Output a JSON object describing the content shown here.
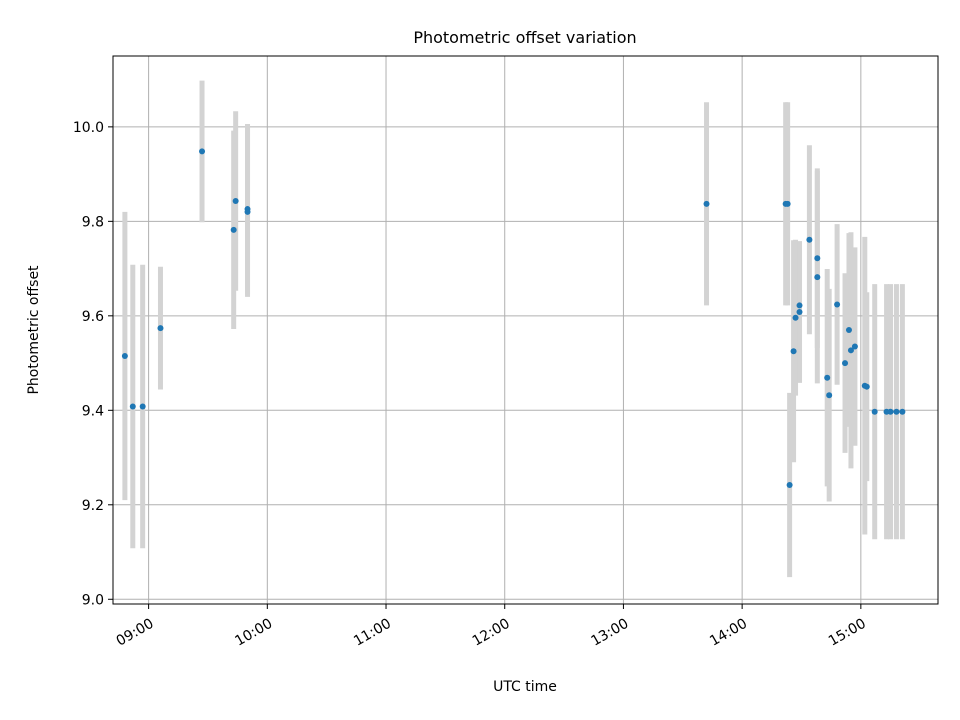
{
  "chart_data": {
    "type": "scatter",
    "title": "Photometric offset variation",
    "xlabel": "UTC time",
    "ylabel": "Photometric offset",
    "xlim": [
      "08:42",
      "15:39"
    ],
    "ylim": [
      8.99,
      10.15
    ],
    "grid": true,
    "x_tick_labels": [
      "09:00",
      "10:00",
      "11:00",
      "12:00",
      "13:00",
      "14:00",
      "15:00"
    ],
    "y_tick_labels": [
      "9.0",
      "9.2",
      "9.4",
      "9.6",
      "9.8",
      "10.0"
    ],
    "colors": {
      "point": "#1f77b4",
      "errorbar": "#d3d3d3",
      "grid": "#b0b0b0"
    },
    "points": [
      {
        "x": "08:48",
        "y": 9.515,
        "err": 0.305
      },
      {
        "x": "08:52",
        "y": 9.408,
        "err": 0.3
      },
      {
        "x": "08:57",
        "y": 9.408,
        "err": 0.3
      },
      {
        "x": "09:06",
        "y": 9.574,
        "err": 0.13
      },
      {
        "x": "09:27",
        "y": 9.948,
        "err": 0.15
      },
      {
        "x": "09:43",
        "y": 9.782,
        "err": 0.21
      },
      {
        "x": "09:44",
        "y": 9.843,
        "err": 0.19
      },
      {
        "x": "09:50",
        "y": 9.826,
        "err": 0.18
      },
      {
        "x": "09:50",
        "y": 9.82,
        "err": 0.18
      },
      {
        "x": "13:42",
        "y": 9.837,
        "err": 0.215
      },
      {
        "x": "14:22",
        "y": 9.837,
        "err": 0.215
      },
      {
        "x": "14:23",
        "y": 9.837,
        "err": 0.215
      },
      {
        "x": "14:24",
        "y": 9.242,
        "err": 0.195
      },
      {
        "x": "14:26",
        "y": 9.525,
        "err": 0.235
      },
      {
        "x": "14:27",
        "y": 9.596,
        "err": 0.165
      },
      {
        "x": "14:29",
        "y": 9.622,
        "err": 0.135
      },
      {
        "x": "14:29",
        "y": 9.608,
        "err": 0.15
      },
      {
        "x": "14:34",
        "y": 9.761,
        "err": 0.2
      },
      {
        "x": "14:38",
        "y": 9.722,
        "err": 0.19
      },
      {
        "x": "14:38",
        "y": 9.682,
        "err": 0.225
      },
      {
        "x": "14:43",
        "y": 9.469,
        "err": 0.23
      },
      {
        "x": "14:44",
        "y": 9.432,
        "err": 0.225
      },
      {
        "x": "14:48",
        "y": 9.624,
        "err": 0.17
      },
      {
        "x": "14:52",
        "y": 9.5,
        "err": 0.19
      },
      {
        "x": "14:54",
        "y": 9.57,
        "err": 0.205
      },
      {
        "x": "14:55",
        "y": 9.527,
        "err": 0.25
      },
      {
        "x": "14:57",
        "y": 9.535,
        "err": 0.21
      },
      {
        "x": "15:02",
        "y": 9.452,
        "err": 0.315
      },
      {
        "x": "15:03",
        "y": 9.45,
        "err": 0.2
      },
      {
        "x": "15:07",
        "y": 9.397,
        "err": 0.27
      },
      {
        "x": "15:13",
        "y": 9.397,
        "err": 0.27
      },
      {
        "x": "15:15",
        "y": 9.397,
        "err": 0.27
      },
      {
        "x": "15:18",
        "y": 9.397,
        "err": 0.27
      },
      {
        "x": "15:21",
        "y": 9.397,
        "err": 0.27
      }
    ]
  }
}
